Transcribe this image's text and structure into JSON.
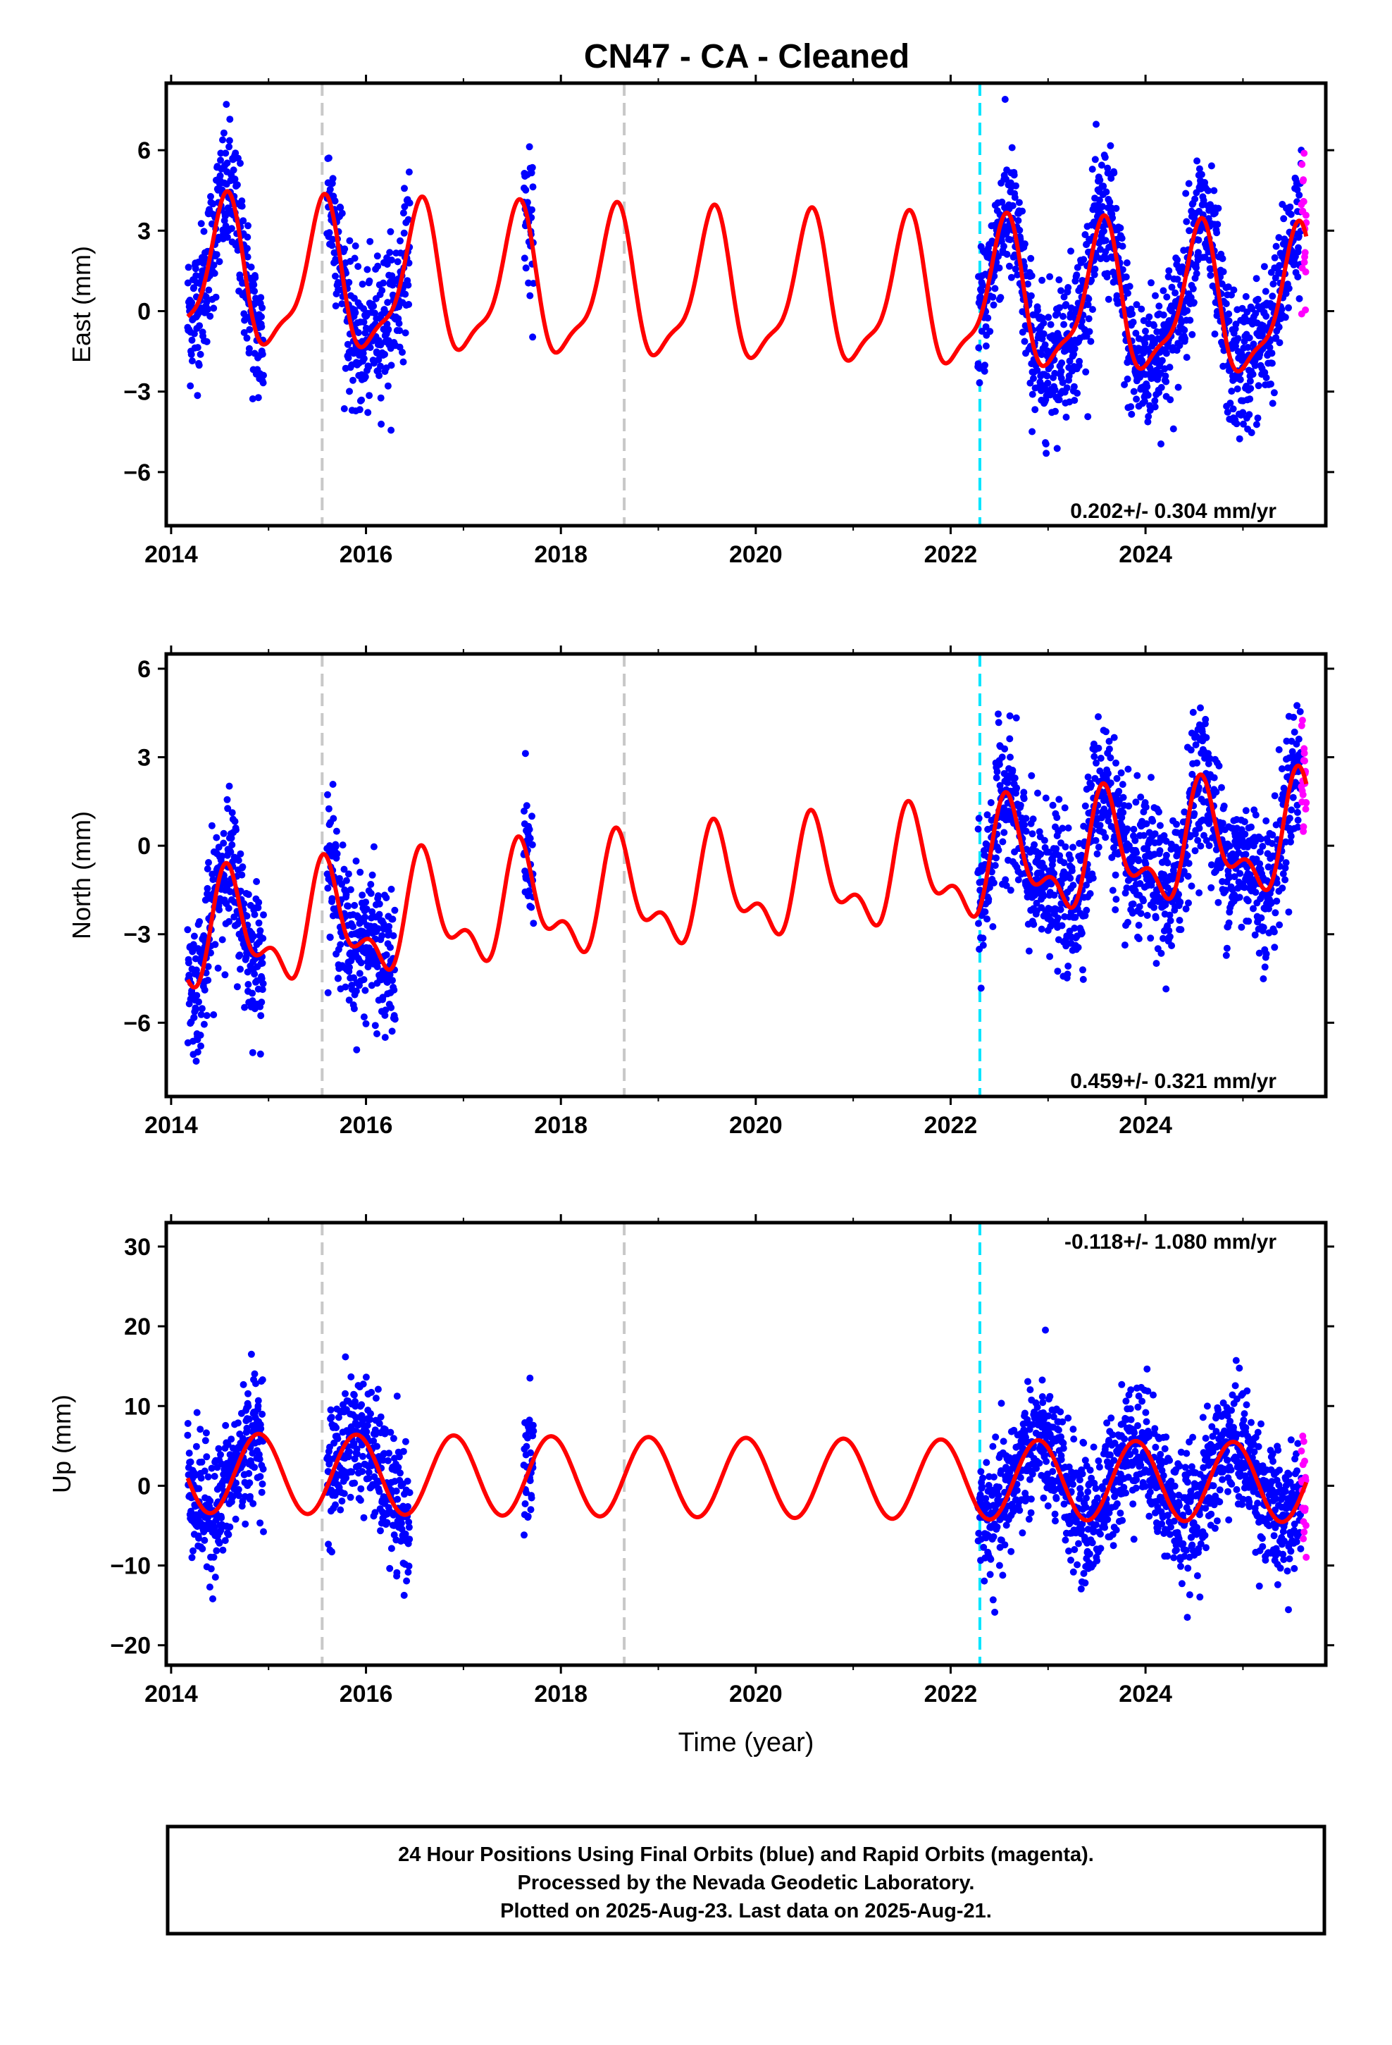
{
  "title": "CN47  - CA - Cleaned",
  "x_axis_label": "Time (year)",
  "footer": {
    "line1": "24 Hour Positions Using Final Orbits (blue) and Rapid Orbits (magenta).",
    "line2": "Processed by the Nevada Geodetic Laboratory.",
    "line3": "Plotted on 2025-Aug-23. Last data on 2025-Aug-21."
  },
  "colors": {
    "final_orbits": "#0000ff",
    "rapid_orbits": "#ff00ff",
    "model": "#ff0000",
    "equipment_change": "#c8c8c8",
    "offset_marker": "#00e5ff"
  },
  "chart_data": [
    {
      "type": "scatter",
      "component": "east",
      "ylabel": "East (mm)",
      "rate_label": "0.202+/- 0.304 mm/yr",
      "rate_position": "bottom-right",
      "xlim": [
        2013.95,
        2025.85
      ],
      "ylim": [
        -8,
        8.5
      ],
      "xticks": [
        2014,
        2016,
        2018,
        2020,
        2022,
        2024
      ],
      "yticks": [
        -6,
        -3,
        0,
        3,
        6
      ],
      "vertical_lines": [
        {
          "x": 2015.55,
          "style": "dashed",
          "color": "gray"
        },
        {
          "x": 2018.65,
          "style": "dashed",
          "color": "gray"
        },
        {
          "x": 2022.3,
          "style": "dashed",
          "color": "cyan"
        }
      ],
      "data_spans": [
        [
          2014.17,
          2014.95
        ],
        [
          2015.6,
          2016.45
        ],
        [
          2017.62,
          2017.72
        ],
        [
          2022.28,
          2025.6
        ]
      ],
      "rapid_span": [
        2025.6,
        2025.65
      ],
      "model": {
        "mean": 0.6,
        "trend": -0.1,
        "annual_amp": 2.6,
        "annual_peak": 0.55,
        "semiannual_amp": 0.8,
        "semiannual_peak": 0.6,
        "scatter": 1.3
      },
      "series": [
        {
          "name": "Final Orbits (blue)",
          "color": "#0000ff"
        },
        {
          "name": "Rapid Orbits (magenta)",
          "color": "#ff00ff"
        }
      ]
    },
    {
      "type": "scatter",
      "component": "north",
      "ylabel": "North (mm)",
      "rate_label": "0.459+/- 0.321 mm/yr",
      "rate_position": "bottom-right",
      "xlim": [
        2013.95,
        2025.85
      ],
      "ylim": [
        -8.5,
        6.5
      ],
      "xticks": [
        2014,
        2016,
        2018,
        2020,
        2022,
        2024
      ],
      "yticks": [
        -6,
        -3,
        0,
        3,
        6
      ],
      "vertical_lines": [
        {
          "x": 2015.55,
          "style": "dashed",
          "color": "gray"
        },
        {
          "x": 2018.65,
          "style": "dashed",
          "color": "gray"
        },
        {
          "x": 2022.3,
          "style": "dashed",
          "color": "cyan"
        }
      ],
      "data_spans": [
        [
          2014.17,
          2014.95
        ],
        [
          2015.6,
          2016.3
        ],
        [
          2017.62,
          2017.72
        ],
        [
          2022.28,
          2025.6
        ]
      ],
      "rapid_span": [
        2025.6,
        2025.65
      ],
      "model": {
        "mean": -1.4,
        "trend": 0.3,
        "annual_amp": 1.6,
        "annual_peak": 0.6,
        "semiannual_amp": 0.9,
        "semiannual_peak": 0.55,
        "scatter": 1.2
      },
      "series": [
        {
          "name": "Final Orbits (blue)",
          "color": "#0000ff"
        },
        {
          "name": "Rapid Orbits (magenta)",
          "color": "#ff00ff"
        }
      ]
    },
    {
      "type": "scatter",
      "component": "up",
      "ylabel": "Up (mm)",
      "rate_label": "-0.118+/- 1.080 mm/yr",
      "rate_position": "top-right",
      "xlim": [
        2013.95,
        2025.85
      ],
      "ylim": [
        -22.5,
        33
      ],
      "xticks": [
        2014,
        2016,
        2018,
        2020,
        2022,
        2024
      ],
      "yticks": [
        -20,
        -10,
        0,
        10,
        20,
        30
      ],
      "vertical_lines": [
        {
          "x": 2015.55,
          "style": "dashed",
          "color": "gray"
        },
        {
          "x": 2018.65,
          "style": "dashed",
          "color": "gray"
        },
        {
          "x": 2022.3,
          "style": "dashed",
          "color": "cyan"
        }
      ],
      "data_spans": [
        [
          2014.17,
          2014.95
        ],
        [
          2015.6,
          2016.45
        ],
        [
          2017.62,
          2017.72
        ],
        [
          2022.28,
          2025.6
        ]
      ],
      "rapid_span": [
        2025.6,
        2025.65
      ],
      "model": {
        "mean": 1.0,
        "trend": -0.1,
        "annual_amp": 5.0,
        "annual_peak": 0.9,
        "semiannual_amp": 0.0,
        "semiannual_peak": 0.0,
        "scatter": 4.0
      },
      "series": [
        {
          "name": "Final Orbits (blue)",
          "color": "#0000ff"
        },
        {
          "name": "Rapid Orbits (magenta)",
          "color": "#ff00ff"
        }
      ]
    }
  ]
}
